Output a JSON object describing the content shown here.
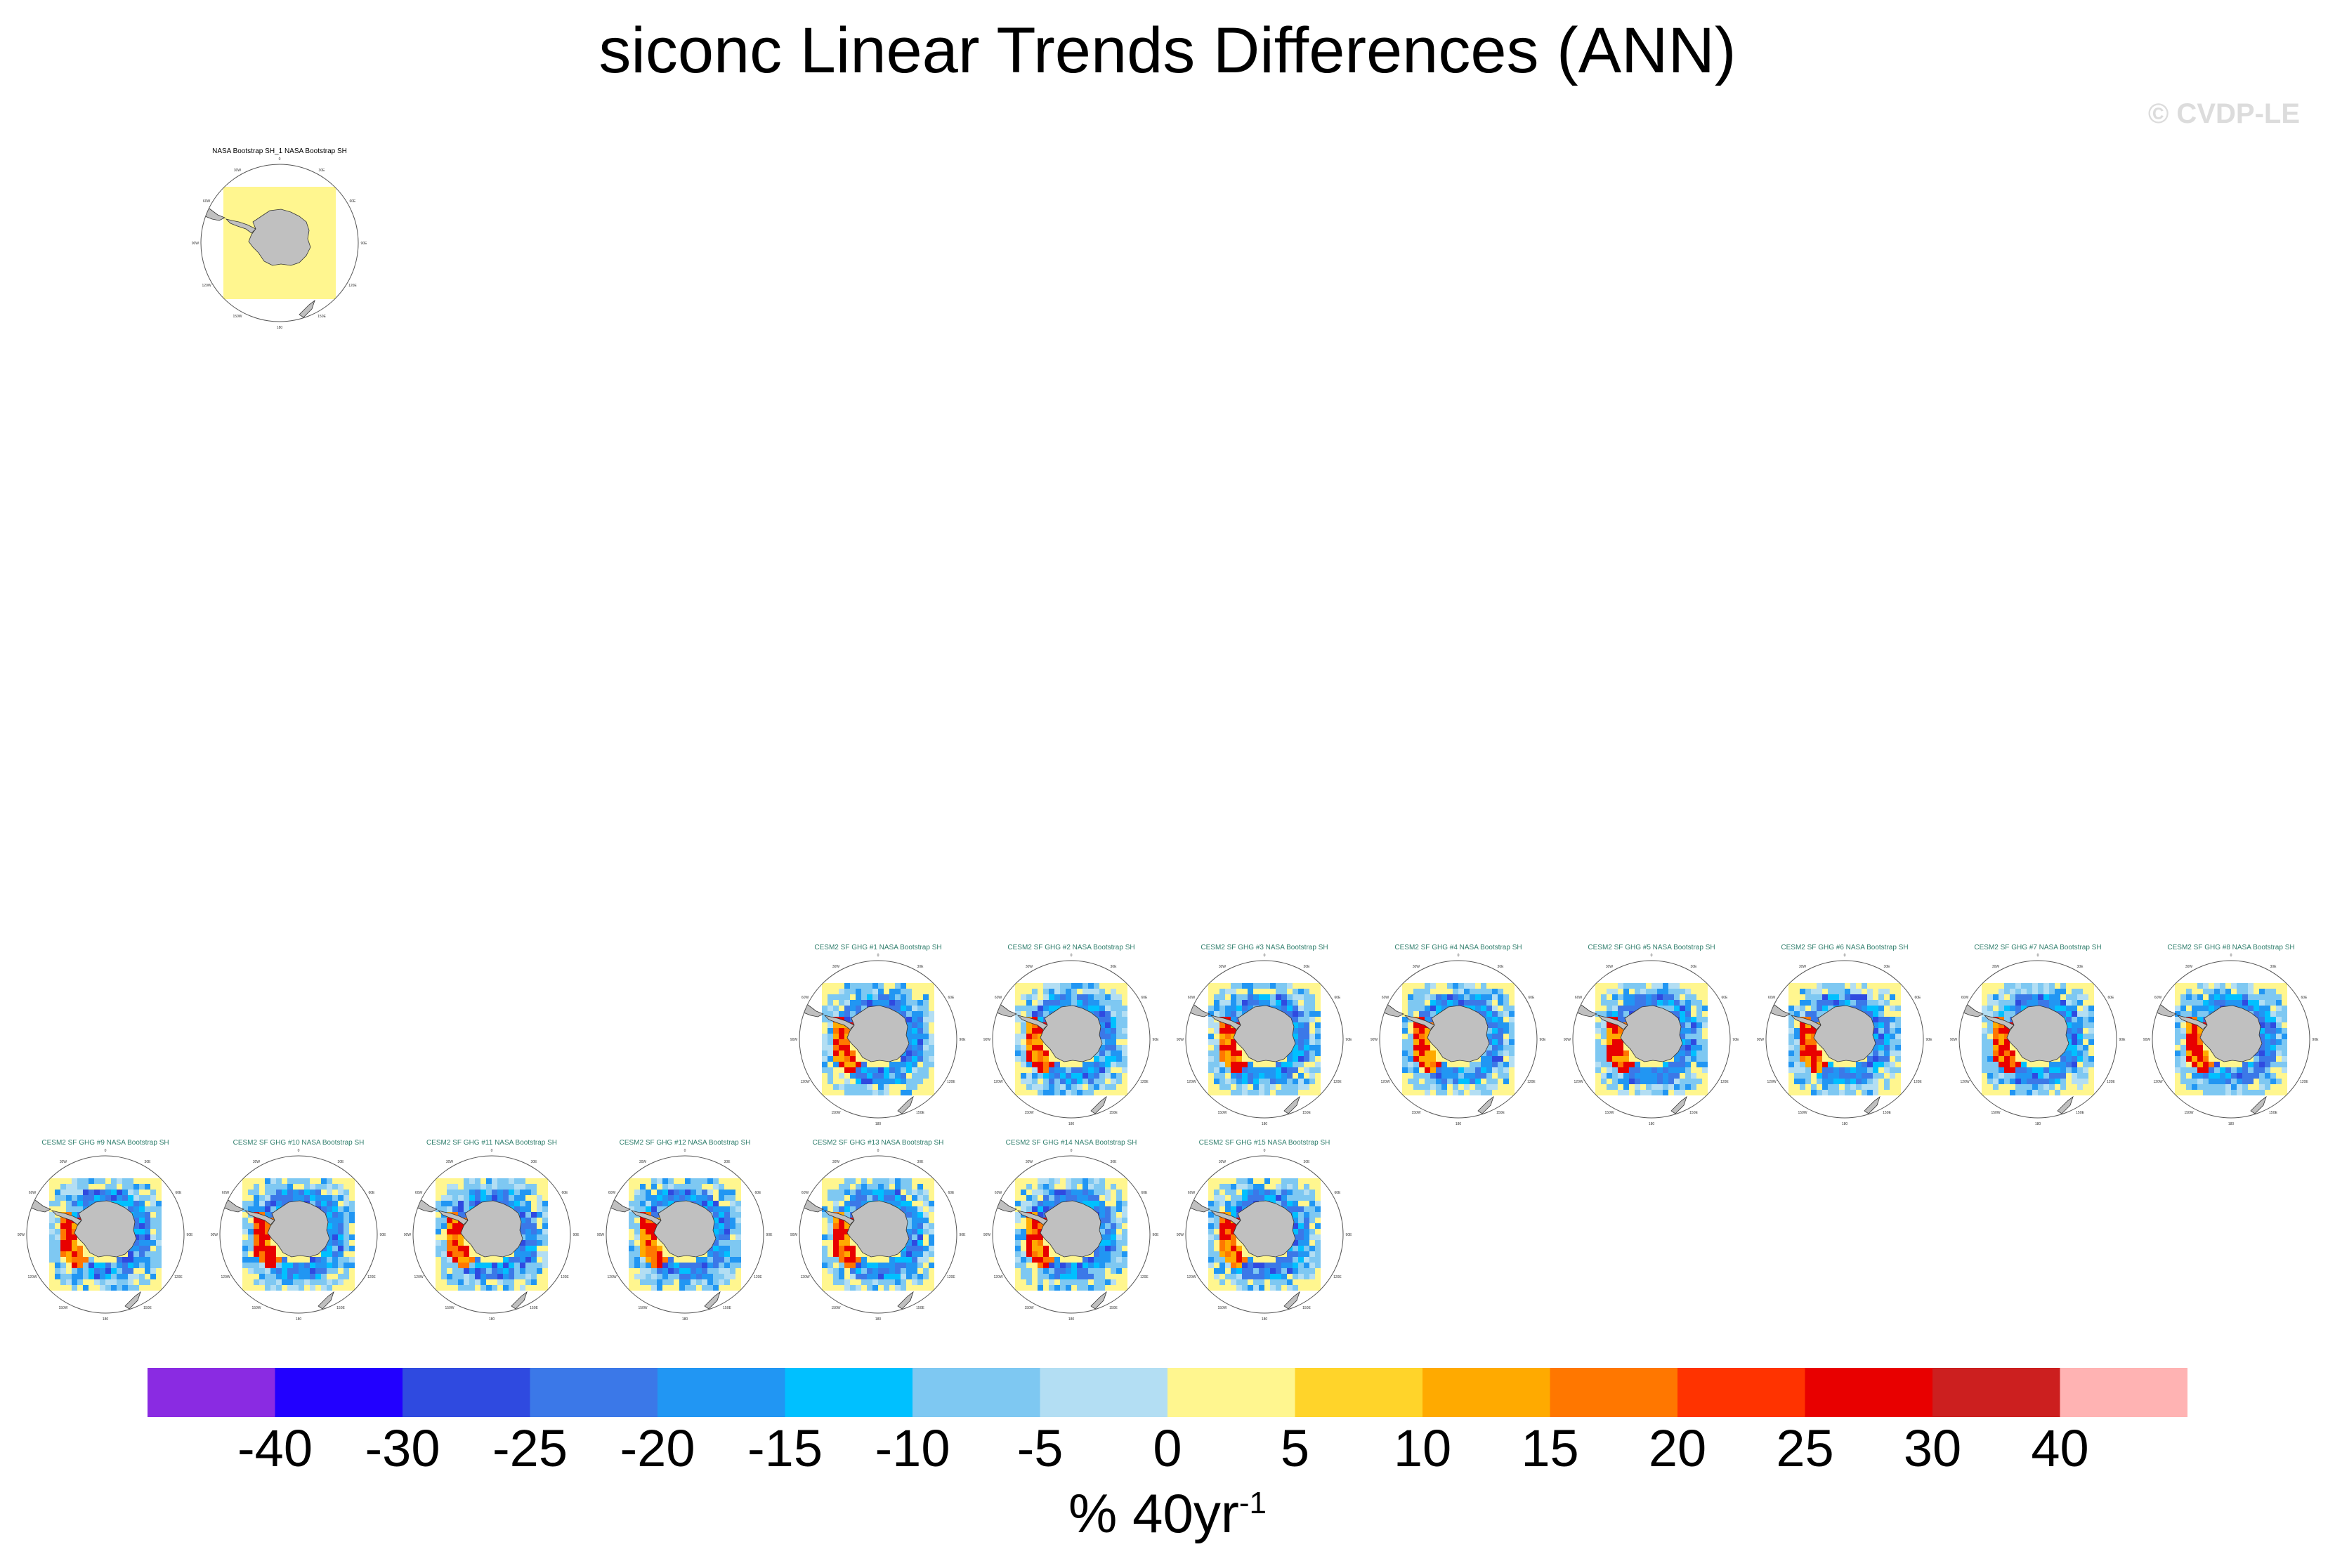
{
  "title": "siconc Linear Trends Differences (ANN)",
  "credit": "© CVDP-LE",
  "colorbar": {
    "unit_main": "% 40yr",
    "unit_sup": "-1",
    "labels": [
      "-40",
      "-30",
      "-25",
      "-20",
      "-15",
      "-10",
      "-5",
      "0",
      "5",
      "10",
      "15",
      "20",
      "25",
      "30",
      "40"
    ],
    "colors": [
      "#8a2be2",
      "#2200ff",
      "#2f4ae0",
      "#3b78e8",
      "#2196f3",
      "#00c0ff",
      "#7ec8f2",
      "#b3def3",
      "#fff68f",
      "#ffd42a",
      "#ffaa00",
      "#ff7700",
      "#ff3300",
      "#e80000",
      "#cc1f1f",
      "#ffb3b3"
    ]
  },
  "lon_labels": [
    "0",
    "30E",
    "60E",
    "90E",
    "120E",
    "150E",
    "180",
    "150W",
    "120W",
    "90W",
    "60W",
    "30W"
  ],
  "panels": [
    {
      "title": "NASA Bootstrap SH_1 NASA Bootstrap SH",
      "obs": true
    },
    {
      "title": "CESM2 SF GHG #1 NASA Bootstrap SH",
      "obs": false
    },
    {
      "title": "CESM2 SF GHG #2 NASA Bootstrap SH",
      "obs": false
    },
    {
      "title": "CESM2 SF GHG #3 NASA Bootstrap SH",
      "obs": false
    },
    {
      "title": "CESM2 SF GHG #4 NASA Bootstrap SH",
      "obs": false
    },
    {
      "title": "CESM2 SF GHG #5 NASA Bootstrap SH",
      "obs": false
    },
    {
      "title": "CESM2 SF GHG #6 NASA Bootstrap SH",
      "obs": false
    },
    {
      "title": "CESM2 SF GHG #7 NASA Bootstrap SH",
      "obs": false
    },
    {
      "title": "CESM2 SF GHG #8 NASA Bootstrap SH",
      "obs": false
    },
    {
      "title": "CESM2 SF GHG #9 NASA Bootstrap SH",
      "obs": false
    },
    {
      "title": "CESM2 SF GHG #10 NASA Bootstrap SH",
      "obs": false
    },
    {
      "title": "CESM2 SF GHG #11 NASA Bootstrap SH",
      "obs": false
    },
    {
      "title": "CESM2 SF GHG #12 NASA Bootstrap SH",
      "obs": false
    },
    {
      "title": "CESM2 SF GHG #13 NASA Bootstrap SH",
      "obs": false
    },
    {
      "title": "CESM2 SF GHG #14 NASA Bootstrap SH",
      "obs": false
    },
    {
      "title": "CESM2 SF GHG #15 NASA Bootstrap SH",
      "obs": false
    }
  ],
  "chart_data": {
    "type": "heatmap",
    "title": "siconc Linear Trends Differences (ANN)",
    "variable": "siconc",
    "season": "ANN",
    "region": "Southern Hemisphere polar stereographic",
    "colorbar_levels": [
      -40,
      -30,
      -25,
      -20,
      -15,
      -10,
      -5,
      0,
      5,
      10,
      15,
      20,
      25,
      30,
      40
    ],
    "colorbar_unit": "% 40yr^-1",
    "panel_count": 16,
    "panels": [
      "NASA Bootstrap SH_1 NASA Bootstrap SH",
      "CESM2 SF GHG #1 NASA Bootstrap SH",
      "CESM2 SF GHG #2 NASA Bootstrap SH",
      "CESM2 SF GHG #3 NASA Bootstrap SH",
      "CESM2 SF GHG #4 NASA Bootstrap SH",
      "CESM2 SF GHG #5 NASA Bootstrap SH",
      "CESM2 SF GHG #6 NASA Bootstrap SH",
      "CESM2 SF GHG #7 NASA Bootstrap SH",
      "CESM2 SF GHG #8 NASA Bootstrap SH",
      "CESM2 SF GHG #9 NASA Bootstrap SH",
      "CESM2 SF GHG #10 NASA Bootstrap SH",
      "CESM2 SF GHG #11 NASA Bootstrap SH",
      "CESM2 SF GHG #12 NASA Bootstrap SH",
      "CESM2 SF GHG #13 NASA Bootstrap SH",
      "CESM2 SF GHG #14 NASA Bootstrap SH",
      "CESM2 SF GHG #15 NASA Bootstrap SH"
    ]
  }
}
